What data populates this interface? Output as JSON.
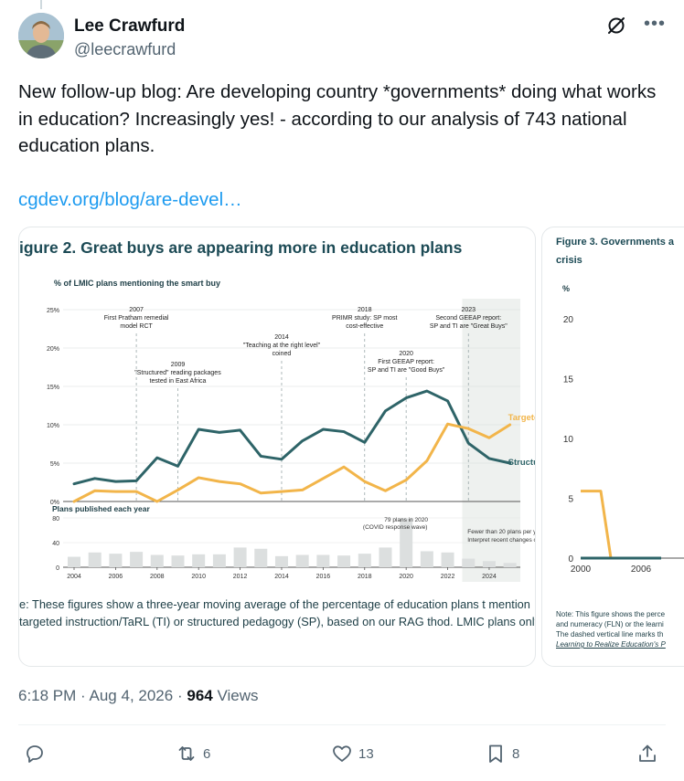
{
  "author": {
    "name": "Lee Crawfurd",
    "handle": "@leecrawfurd"
  },
  "tweet": {
    "text": "New follow-up blog: Are developing country *governments* doing what works in education? Increasingly yes! - according to our analysis of 743 national education plans.",
    "link_text": "cgdev.org/blog/are-devel…"
  },
  "figure1": {
    "title": "igure 2. Great buys are appearing more in education plans",
    "note": "e: These figures show a three-year moving average of the percentage of education plans t mention targeted instruction/TaRL (TI) or structured pedagogy (SP), based on our RAG thod. LMIC plans only.",
    "chart_data": {
      "type": "line",
      "ylabel": "% of LMIC plans mentioning the smart buy",
      "ylim": [
        0,
        25
      ],
      "yticks": [
        "0%",
        "5%",
        "10%",
        "15%",
        "20%",
        "25%"
      ],
      "x": [
        2004,
        2005,
        2006,
        2007,
        2008,
        2009,
        2010,
        2011,
        2012,
        2013,
        2014,
        2015,
        2016,
        2017,
        2018,
        2019,
        2020,
        2021,
        2022,
        2023,
        2024,
        2025
      ],
      "xticks": [
        "2004",
        "2006",
        "2008",
        "2010",
        "2012",
        "2014",
        "2016",
        "2018",
        "2020",
        "2022",
        "2024"
      ],
      "series": [
        {
          "name": "Structured pedagogy",
          "color": "#2e6468",
          "values": [
            2.3,
            3.0,
            2.6,
            2.7,
            5.7,
            4.6,
            9.4,
            9.0,
            9.3,
            5.9,
            5.5,
            7.9,
            9.4,
            9.1,
            7.7,
            11.8,
            13.5,
            14.4,
            13.1,
            7.6,
            5.6,
            5.0
          ]
        },
        {
          "name": "Targeted instruction",
          "color": "#f2b54a",
          "values": [
            0.0,
            1.4,
            1.3,
            1.3,
            0.0,
            1.5,
            3.1,
            2.6,
            2.3,
            1.1,
            1.3,
            1.5,
            3.0,
            4.5,
            2.6,
            1.4,
            2.8,
            5.3,
            10.1,
            9.5,
            8.3,
            10.0
          ]
        }
      ],
      "annotations": [
        {
          "year": 2007,
          "text": [
            "2007",
            "First Pratham remedial",
            "model RCT"
          ]
        },
        {
          "year": 2009,
          "text": [
            "2009",
            "\"Structured\" reading packages",
            "tested in East Africa"
          ]
        },
        {
          "year": 2014,
          "text": [
            "2014",
            "\"Teaching at the right level\"",
            "coined"
          ]
        },
        {
          "year": 2018,
          "text": [
            "2018",
            "PRIMR study: SP most",
            "cost-effective"
          ]
        },
        {
          "year": 2020,
          "text": [
            "2020",
            "First GEEAP report:",
            "SP and TI are \"Good Buys\""
          ]
        },
        {
          "year": 2023,
          "text": [
            "2023",
            "Second GEEAP report:",
            "SP and TI are \"Great Buys\""
          ]
        }
      ],
      "bars": {
        "title": "Plans published each year",
        "ylim": [
          0,
          80
        ],
        "yticks": [
          "0",
          "40",
          "80"
        ],
        "x": [
          2004,
          2005,
          2006,
          2007,
          2008,
          2009,
          2010,
          2011,
          2012,
          2013,
          2014,
          2015,
          2016,
          2017,
          2018,
          2019,
          2020,
          2021,
          2022,
          2023,
          2024,
          2025
        ],
        "values": [
          17,
          24,
          22,
          25,
          20,
          19,
          21,
          21,
          32,
          30,
          18,
          20,
          20,
          19,
          22,
          32,
          79,
          26,
          24,
          14,
          10,
          7
        ],
        "annotations": [
          {
            "text": [
              "79 plans in 2020",
              "(COVID response wave)"
            ]
          },
          {
            "text": [
              "Fewer than 20 plans per year",
              "Interpret recent changes cautiously."
            ]
          }
        ]
      }
    }
  },
  "figure2": {
    "title": "Figure 3. Governments a",
    "subtitle": "crisis",
    "note_lines": [
      "Note: This figure shows the perce",
      "and numeracy (FLN) or the learni",
      "The dashed vertical line marks th",
      "Learning to Realize Education's P"
    ],
    "chart_data": {
      "type": "line",
      "ylabel": "%",
      "ylim": [
        0,
        20
      ],
      "yticks": [
        "0",
        "5",
        "10",
        "15",
        "20"
      ],
      "xticks": [
        "2000",
        "2006",
        "20"
      ],
      "series": [
        {
          "name": "",
          "color": "#f2b54a",
          "x": [
            2000,
            2002,
            2003,
            2008
          ],
          "values": [
            5.6,
            5.6,
            0,
            0
          ]
        },
        {
          "name": "",
          "color": "#2e6468",
          "x": [
            2000,
            2008
          ],
          "values": [
            0,
            0
          ]
        }
      ]
    }
  },
  "meta": {
    "time": "6:18 PM",
    "sep": "·",
    "date": "Aug 4, 2026",
    "views_count": "964",
    "views_label": "Views"
  },
  "actions": {
    "replies": "",
    "reposts": "6",
    "likes": "13",
    "bookmarks": "8"
  },
  "colors": {
    "accent": "#1d9bf0",
    "sp": "#2e6468",
    "ti": "#f2b54a"
  }
}
